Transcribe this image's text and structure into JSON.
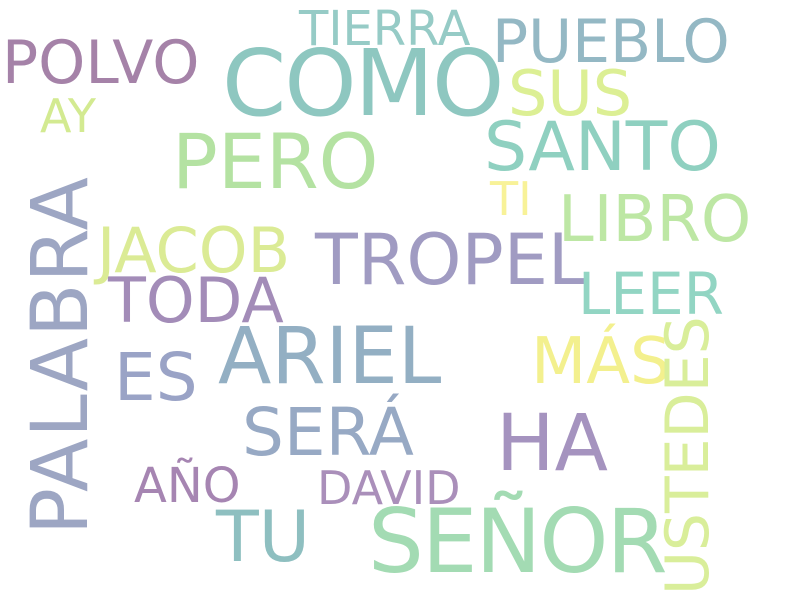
{
  "words": [
    {
      "id": "como",
      "text": "COMO",
      "color": "#8ec7c0"
    },
    {
      "id": "senor",
      "text": "SEÑOR",
      "color": "#a3dbb3"
    },
    {
      "id": "palabra",
      "text": "PALABRA",
      "color": "#9da6c3"
    },
    {
      "id": "ariel",
      "text": "ARIEL",
      "color": "#93afc3"
    },
    {
      "id": "tropel",
      "text": "TROPEL",
      "color": "#a09bc2"
    },
    {
      "id": "pero",
      "text": "PERO",
      "color": "#b4e2a2"
    },
    {
      "id": "santo",
      "text": "SANTO",
      "color": "#8fd0c0"
    },
    {
      "id": "libro",
      "text": "LIBRO",
      "color": "#bde7a4"
    },
    {
      "id": "sus",
      "text": "SUS",
      "color": "#dcef94"
    },
    {
      "id": "pueblo",
      "text": "PUEBLO",
      "color": "#94b8c4"
    },
    {
      "id": "polvo",
      "text": "POLVO",
      "color": "#a582a8"
    },
    {
      "id": "tierra",
      "text": "TIERRA",
      "color": "#96cbc6"
    },
    {
      "id": "ha",
      "text": "HA",
      "color": "#a593bf"
    },
    {
      "id": "sera",
      "text": "SERÁ",
      "color": "#97a9c4"
    },
    {
      "id": "tu",
      "text": "TU",
      "color": "#8ebfc0"
    },
    {
      "id": "es",
      "text": "ES",
      "color": "#9aa3c6"
    },
    {
      "id": "toda",
      "text": "TODA",
      "color": "#a38cb8"
    },
    {
      "id": "jacob",
      "text": "JACOB",
      "color": "#dbeb95"
    },
    {
      "id": "leer",
      "text": "LEER",
      "color": "#92d5c3"
    },
    {
      "id": "mas",
      "text": "MÁS",
      "color": "#f3f08e"
    },
    {
      "id": "ustedes",
      "text": "USTEDES",
      "color": "#d9ee9a"
    },
    {
      "id": "david",
      "text": "DAVID",
      "color": "#aa8fba"
    },
    {
      "id": "ano",
      "text": "AÑO",
      "color": "#a685b2"
    },
    {
      "id": "ti",
      "text": "TI",
      "color": "#f8f298"
    },
    {
      "id": "ay",
      "text": "AY",
      "color": "#d3ea91"
    }
  ]
}
